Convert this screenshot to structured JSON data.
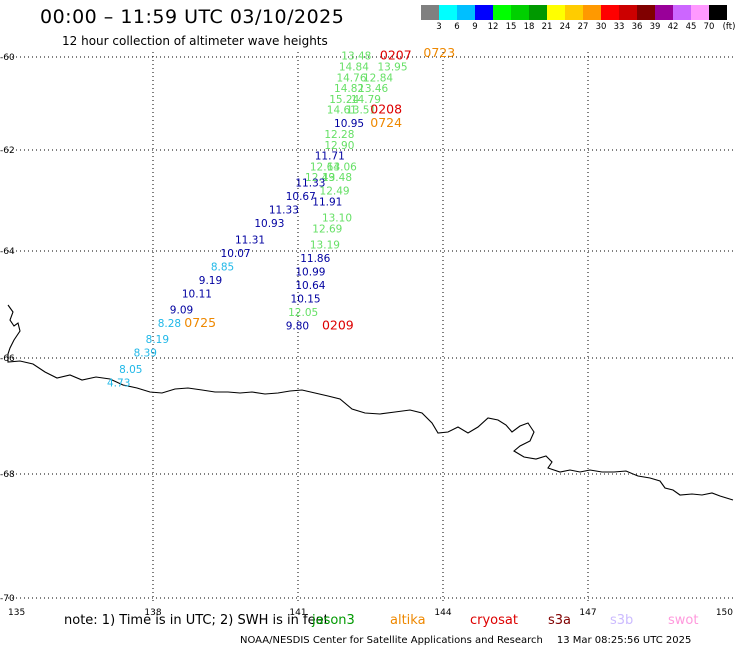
{
  "title": "00:00 – 11:59 UTC 03/10/2025",
  "subtitle": "12 hour collection of altimeter wave heights",
  "legend": {
    "colors": [
      "#808080",
      "#00ffff",
      "#00bfff",
      "#0000ff",
      "#00ff00",
      "#00d000",
      "#009900",
      "#ffff00",
      "#ffcc00",
      "#ff9900",
      "#ff0000",
      "#cc0000",
      "#800000",
      "#990099",
      "#cc66ff",
      "#ff99ff",
      "#000000"
    ],
    "labels": [
      "3",
      "6",
      "9",
      "12",
      "15",
      "18",
      "21",
      "24",
      "27",
      "30",
      "33",
      "36",
      "39",
      "42",
      "45",
      "70"
    ],
    "unit": "(ft)"
  },
  "axes": {
    "x_ticks": [
      "135",
      "138",
      "141",
      "144",
      "147",
      "150"
    ],
    "y_ticks": [
      "-60",
      "-62",
      "-64",
      "-66",
      "-68",
      "-70"
    ]
  },
  "colors": {
    "swh_cyan": "#20b8e8",
    "swh_blue": "#0000a0",
    "swh_green": "#66e066",
    "time_red": "#dd0000",
    "time_orange": "#ee8800",
    "coast": "#000000",
    "grid": "#000000"
  },
  "observations": [
    {
      "v": "13.48",
      "lon": 141.9,
      "lat": -60.05,
      "c": "swh_green"
    },
    {
      "v": "13.95",
      "lon": 142.65,
      "lat": -60.25,
      "c": "swh_green"
    },
    {
      "v": "14.84",
      "lon": 141.85,
      "lat": -60.25,
      "c": "swh_green"
    },
    {
      "v": "14.76",
      "lon": 141.8,
      "lat": -60.45,
      "c": "swh_green"
    },
    {
      "v": "12.84",
      "lon": 142.35,
      "lat": -60.45,
      "c": "swh_green"
    },
    {
      "v": "14.82",
      "lon": 141.75,
      "lat": -60.65,
      "c": "swh_green"
    },
    {
      "v": "13.46",
      "lon": 142.25,
      "lat": -60.65,
      "c": "swh_green"
    },
    {
      "v": "15.24",
      "lon": 141.65,
      "lat": -60.85,
      "c": "swh_green"
    },
    {
      "v": "14.79",
      "lon": 142.1,
      "lat": -60.85,
      "c": "swh_green"
    },
    {
      "v": "14.61",
      "lon": 141.6,
      "lat": -61.05,
      "c": "swh_green"
    },
    {
      "v": "13.51",
      "lon": 142.0,
      "lat": -61.05,
      "c": "swh_green"
    },
    {
      "v": "10.95",
      "lon": 141.75,
      "lat": -61.3,
      "c": "swh_blue"
    },
    {
      "v": "12.28",
      "lon": 141.55,
      "lat": -61.5,
      "c": "swh_green"
    },
    {
      "v": "12.90",
      "lon": 141.55,
      "lat": -61.7,
      "c": "swh_green"
    },
    {
      "v": "11.71",
      "lon": 141.35,
      "lat": -61.9,
      "c": "swh_blue"
    },
    {
      "v": "12.64",
      "lon": 141.25,
      "lat": -62.1,
      "c": "swh_green"
    },
    {
      "v": "13.06",
      "lon": 141.6,
      "lat": -62.1,
      "c": "swh_green"
    },
    {
      "v": "12.49",
      "lon": 141.15,
      "lat": -62.3,
      "c": "swh_green"
    },
    {
      "v": "13.48",
      "lon": 141.5,
      "lat": -62.3,
      "c": "swh_green"
    },
    {
      "v": "11.33",
      "lon": 140.95,
      "lat": -62.4,
      "c": "swh_blue"
    },
    {
      "v": "12.49",
      "lon": 141.45,
      "lat": -62.55,
      "c": "swh_green"
    },
    {
      "v": "10.67",
      "lon": 140.75,
      "lat": -62.65,
      "c": "swh_blue"
    },
    {
      "v": "11.91",
      "lon": 141.3,
      "lat": -62.75,
      "c": "swh_blue"
    },
    {
      "v": "11.33",
      "lon": 140.4,
      "lat": -62.9,
      "c": "swh_blue"
    },
    {
      "v": "13.10",
      "lon": 141.5,
      "lat": -63.05,
      "c": "swh_green"
    },
    {
      "v": "10.93",
      "lon": 140.1,
      "lat": -63.15,
      "c": "swh_blue"
    },
    {
      "v": "12.69",
      "lon": 141.3,
      "lat": -63.25,
      "c": "swh_green"
    },
    {
      "v": "11.31",
      "lon": 139.7,
      "lat": -63.45,
      "c": "swh_blue"
    },
    {
      "v": "13.19",
      "lon": 141.25,
      "lat": -63.55,
      "c": "swh_green"
    },
    {
      "v": "10.07",
      "lon": 139.4,
      "lat": -63.7,
      "c": "swh_blue"
    },
    {
      "v": "11.86",
      "lon": 141.05,
      "lat": -63.8,
      "c": "swh_blue"
    },
    {
      "v": "8.85",
      "lon": 139.2,
      "lat": -63.95,
      "c": "swh_cyan"
    },
    {
      "v": "10.99",
      "lon": 140.95,
      "lat": -64.05,
      "c": "swh_blue"
    },
    {
      "v": "9.19",
      "lon": 138.95,
      "lat": -64.2,
      "c": "swh_blue"
    },
    {
      "v": "10.64",
      "lon": 140.95,
      "lat": -64.3,
      "c": "swh_blue"
    },
    {
      "v": "10.11",
      "lon": 138.6,
      "lat": -64.45,
      "c": "swh_blue"
    },
    {
      "v": "10.15",
      "lon": 140.85,
      "lat": -64.55,
      "c": "swh_blue"
    },
    {
      "v": "9.09",
      "lon": 138.35,
      "lat": -64.75,
      "c": "swh_blue"
    },
    {
      "v": "12.05",
      "lon": 140.8,
      "lat": -64.8,
      "c": "swh_green"
    },
    {
      "v": "8.28",
      "lon": 138.1,
      "lat": -65.0,
      "c": "swh_cyan"
    },
    {
      "v": "9.80",
      "lon": 140.75,
      "lat": -65.05,
      "c": "swh_blue"
    },
    {
      "v": "8.19",
      "lon": 137.85,
      "lat": -65.3,
      "c": "swh_cyan"
    },
    {
      "v": "8.39",
      "lon": 137.6,
      "lat": -65.55,
      "c": "swh_cyan"
    },
    {
      "v": "8.05",
      "lon": 137.3,
      "lat": -65.85,
      "c": "swh_cyan"
    },
    {
      "v": "4.73",
      "lon": 137.05,
      "lat": -66.1,
      "c": "swh_cyan"
    }
  ],
  "time_labels": [
    {
      "t": "0207",
      "lon": 142.7,
      "lat": -60.05,
      "c": "time_red"
    },
    {
      "t": "0723",
      "lon": 143.6,
      "lat": -60.0,
      "c": "time_orange"
    },
    {
      "t": "0208",
      "lon": 142.5,
      "lat": -61.05,
      "c": "time_red"
    },
    {
      "t": "0724",
      "lon": 142.5,
      "lat": -61.3,
      "c": "time_orange"
    },
    {
      "t": "0725",
      "lon": 138.65,
      "lat": -65.0,
      "c": "time_orange"
    },
    {
      "t": "0209",
      "lon": 141.5,
      "lat": -65.05,
      "c": "time_red"
    }
  ],
  "note": "note:  1) Time is in UTC; 2) SWH is in feet",
  "missions": [
    {
      "name": "jason3",
      "color": "#009900"
    },
    {
      "name": "altika",
      "color": "#ee8800"
    },
    {
      "name": "cryosat",
      "color": "#dd0000"
    },
    {
      "name": "s3a",
      "color": "#800000"
    },
    {
      "name": "s3b",
      "color": "#ccbbff"
    },
    {
      "name": "swot",
      "color": "#ff99dd"
    }
  ],
  "credit": "NOAA/NESDIS Center for Satellite Applications and Research",
  "timestamp": "13 Mar 08:25:56 UTC 2025"
}
